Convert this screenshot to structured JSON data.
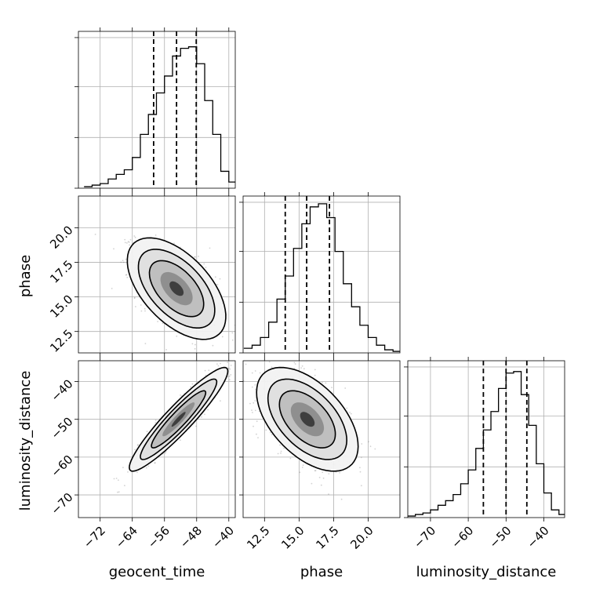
{
  "chart_data": {
    "type": "corner",
    "parameters": [
      "geocent_time",
      "phase",
      "luminosity_distance"
    ],
    "axis_labels": [
      "geocent_time",
      "phase",
      "luminosity_distance"
    ],
    "grid": true,
    "ticks": {
      "geocent_time": [
        "−72",
        "−64",
        "−56",
        "−48",
        "−40"
      ],
      "phase": [
        "12.5",
        "15.0",
        "17.5",
        "20.0"
      ],
      "luminosity_distance": [
        "−70",
        "−60",
        "−50",
        "−40"
      ]
    },
    "ranges": {
      "geocent_time": [
        -77.4,
        -38.4
      ],
      "phase": [
        10.95,
        22.3
      ],
      "luminosity_distance": [
        -76.0,
        -34.5
      ]
    },
    "quantiles": {
      "geocent_time": [
        -58.7,
        -53.0,
        -48.1
      ],
      "phase": [
        14.0,
        15.55,
        17.2
      ],
      "luminosity_distance": [
        -56.0,
        -50.0,
        -44.5
      ]
    },
    "histograms": {
      "geocent_time": {
        "bin_edges": [
          -76.0,
          -74.0,
          -72.0,
          -70.0,
          -68.0,
          -66.0,
          -64.0,
          -62.0,
          -60.0,
          -58.0,
          -56.0,
          -54.0,
          -52.0,
          -50.0,
          -48.0,
          -46.0,
          -44.0,
          -42.0,
          -40.0,
          -38.4
        ],
        "counts": [
          0.01,
          0.02,
          0.03,
          0.06,
          0.09,
          0.12,
          0.2,
          0.35,
          0.48,
          0.62,
          0.73,
          0.86,
          0.91,
          0.92,
          0.81,
          0.57,
          0.35,
          0.11,
          0.04
        ]
      },
      "phase": {
        "bin_edges": [
          11.0,
          11.6,
          12.2,
          12.8,
          13.4,
          14.0,
          14.6,
          15.2,
          15.8,
          16.4,
          17.0,
          17.6,
          18.2,
          18.8,
          19.4,
          20.0,
          20.6,
          21.2,
          21.8,
          22.3
        ],
        "counts": [
          0.03,
          0.05,
          0.1,
          0.2,
          0.35,
          0.5,
          0.68,
          0.84,
          0.95,
          0.97,
          0.88,
          0.66,
          0.45,
          0.3,
          0.18,
          0.1,
          0.05,
          0.02,
          0.01
        ]
      },
      "luminosity_distance": {
        "bin_edges": [
          -76.0,
          -74.0,
          -72.0,
          -70.0,
          -68.0,
          -66.0,
          -64.0,
          -62.0,
          -60.0,
          -58.0,
          -56.0,
          -54.0,
          -52.0,
          -50.0,
          -48.0,
          -46.0,
          -44.0,
          -42.0,
          -40.0,
          -38.0,
          -36.0,
          -34.5
        ],
        "counts": [
          0.01,
          0.02,
          0.03,
          0.05,
          0.08,
          0.11,
          0.15,
          0.22,
          0.31,
          0.45,
          0.57,
          0.69,
          0.84,
          0.94,
          0.95,
          0.8,
          0.6,
          0.35,
          0.16,
          0.05,
          0.02
        ]
      }
    },
    "pairs": [
      {
        "x": "geocent_time",
        "y": "phase",
        "mean": [
          -53.0,
          15.6
        ],
        "sd": [
          5.0,
          1.5
        ],
        "corr": -0.55
      },
      {
        "x": "geocent_time",
        "y": "luminosity_distance",
        "mean": [
          -52.5,
          -50.0
        ],
        "sd": [
          5.0,
          5.6
        ],
        "corr": 0.93
      },
      {
        "x": "phase",
        "y": "luminosity_distance",
        "mean": [
          15.6,
          -50.0
        ],
        "sd": [
          1.5,
          5.6
        ],
        "corr": -0.52
      }
    ]
  }
}
